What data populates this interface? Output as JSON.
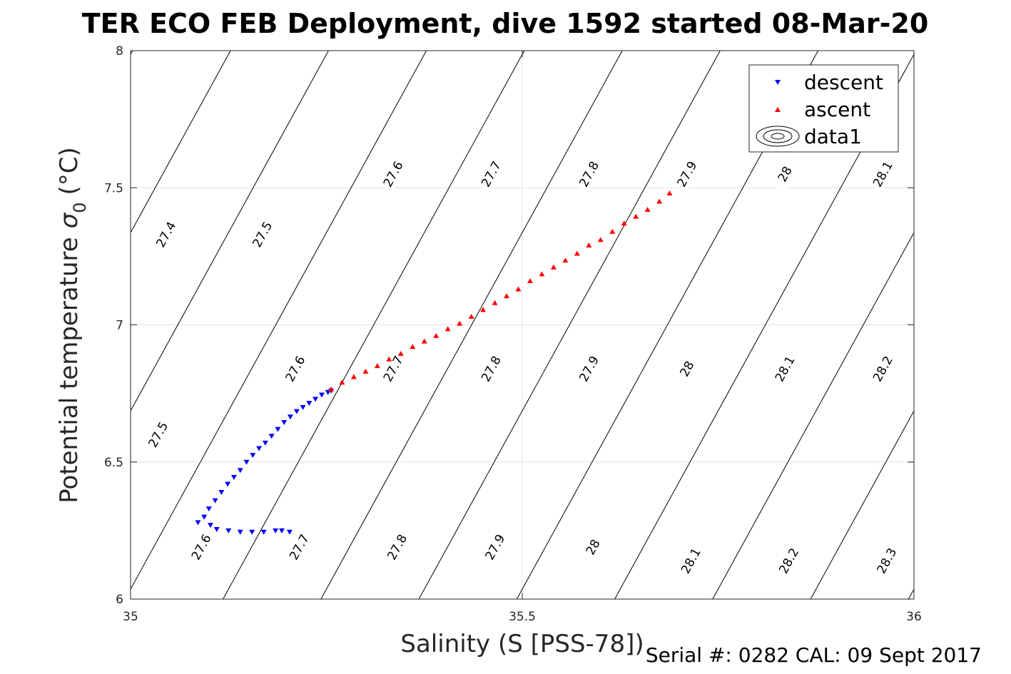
{
  "chart_data": {
    "type": "scatter",
    "title": "TER ECO FEB Deployment, dive 1592 started 08-Mar-20",
    "xlabel": "Salinity (S [PSS-78])",
    "ylabel": "Potential temperature",
    "ylabel_symbol": "σ",
    "ylabel_sub": "0",
    "ylabel_unit": "(°C)",
    "xlim": [
      35,
      36
    ],
    "ylim": [
      6,
      8
    ],
    "xticks": [
      "35",
      "35.5",
      "36"
    ],
    "yticks": [
      "6",
      "6.5",
      "7",
      "7.5",
      "8"
    ],
    "grid": true,
    "legend_position": "top-right",
    "series": [
      {
        "name": "descent",
        "marker": "triangle-down",
        "color": "#0000ff",
        "x": [
          35.086,
          35.094,
          35.1,
          35.108,
          35.116,
          35.124,
          35.132,
          35.14,
          35.148,
          35.156,
          35.164,
          35.172,
          35.18,
          35.188,
          35.196,
          35.204,
          35.212,
          35.22,
          35.228,
          35.236,
          35.244,
          35.252,
          35.256,
          35.102,
          35.11,
          35.125,
          35.14,
          35.155,
          35.17,
          35.185,
          35.193,
          35.203
        ],
        "y": [
          6.28,
          6.3,
          6.33,
          6.36,
          6.39,
          6.42,
          6.445,
          6.47,
          6.5,
          6.525,
          6.55,
          6.57,
          6.595,
          6.62,
          6.645,
          6.665,
          6.685,
          6.7,
          6.715,
          6.73,
          6.745,
          6.755,
          6.76,
          6.27,
          6.255,
          6.25,
          6.245,
          6.245,
          6.245,
          6.25,
          6.25,
          6.245
        ]
      },
      {
        "name": "ascent",
        "marker": "triangle-up",
        "color": "#ff0000",
        "x": [
          35.256,
          35.27,
          35.285,
          35.3,
          35.315,
          35.33,
          35.345,
          35.36,
          35.375,
          35.39,
          35.405,
          35.42,
          35.435,
          35.45,
          35.465,
          35.48,
          35.495,
          35.51,
          35.525,
          35.54,
          35.555,
          35.57,
          35.585,
          35.6,
          35.615,
          35.63,
          35.645,
          35.66,
          35.675,
          35.688
        ],
        "y": [
          6.765,
          6.79,
          6.81,
          6.83,
          6.85,
          6.875,
          6.895,
          6.92,
          6.94,
          6.96,
          6.985,
          7.005,
          7.03,
          7.055,
          7.08,
          7.105,
          7.13,
          7.16,
          7.185,
          7.21,
          7.235,
          7.26,
          7.29,
          7.31,
          7.34,
          7.37,
          7.395,
          7.42,
          7.45,
          7.48
        ]
      },
      {
        "name": "data1",
        "marker": "contour"
      }
    ],
    "contour_labels": [
      {
        "text": "27.4",
        "s": 35.045,
        "t": 7.33
      },
      {
        "text": "27.5",
        "s": 35.168,
        "t": 7.33
      },
      {
        "text": "27.6",
        "s": 35.335,
        "t": 7.55
      },
      {
        "text": "27.7",
        "s": 35.46,
        "t": 7.55
      },
      {
        "text": "27.8",
        "s": 35.585,
        "t": 7.55
      },
      {
        "text": "27.9",
        "s": 35.71,
        "t": 7.55
      },
      {
        "text": "28",
        "s": 35.835,
        "t": 7.55
      },
      {
        "text": "28.1",
        "s": 35.96,
        "t": 7.55
      },
      {
        "text": "27.5",
        "s": 35.035,
        "t": 6.6
      },
      {
        "text": "27.6",
        "s": 35.21,
        "t": 6.84
      },
      {
        "text": "27.7",
        "s": 35.335,
        "t": 6.84
      },
      {
        "text": "27.8",
        "s": 35.46,
        "t": 6.84
      },
      {
        "text": "27.9",
        "s": 35.585,
        "t": 6.84
      },
      {
        "text": "28",
        "s": 35.71,
        "t": 6.84
      },
      {
        "text": "28.1",
        "s": 35.835,
        "t": 6.84
      },
      {
        "text": "28.2",
        "s": 35.96,
        "t": 6.84
      },
      {
        "text": "27.6",
        "s": 35.09,
        "t": 6.19
      },
      {
        "text": "27.7",
        "s": 35.215,
        "t": 6.19
      },
      {
        "text": "27.8",
        "s": 35.34,
        "t": 6.19
      },
      {
        "text": "27.9",
        "s": 35.465,
        "t": 6.19
      },
      {
        "text": "28",
        "s": 35.59,
        "t": 6.19
      },
      {
        "text": "28.1",
        "s": 35.715,
        "t": 6.14
      },
      {
        "text": "28.2",
        "s": 35.84,
        "t": 6.14
      },
      {
        "text": "28.3",
        "s": 35.965,
        "t": 6.14
      }
    ]
  },
  "footer": {
    "serial": "Serial #: 0282  CAL: 09 Sept 2017"
  }
}
